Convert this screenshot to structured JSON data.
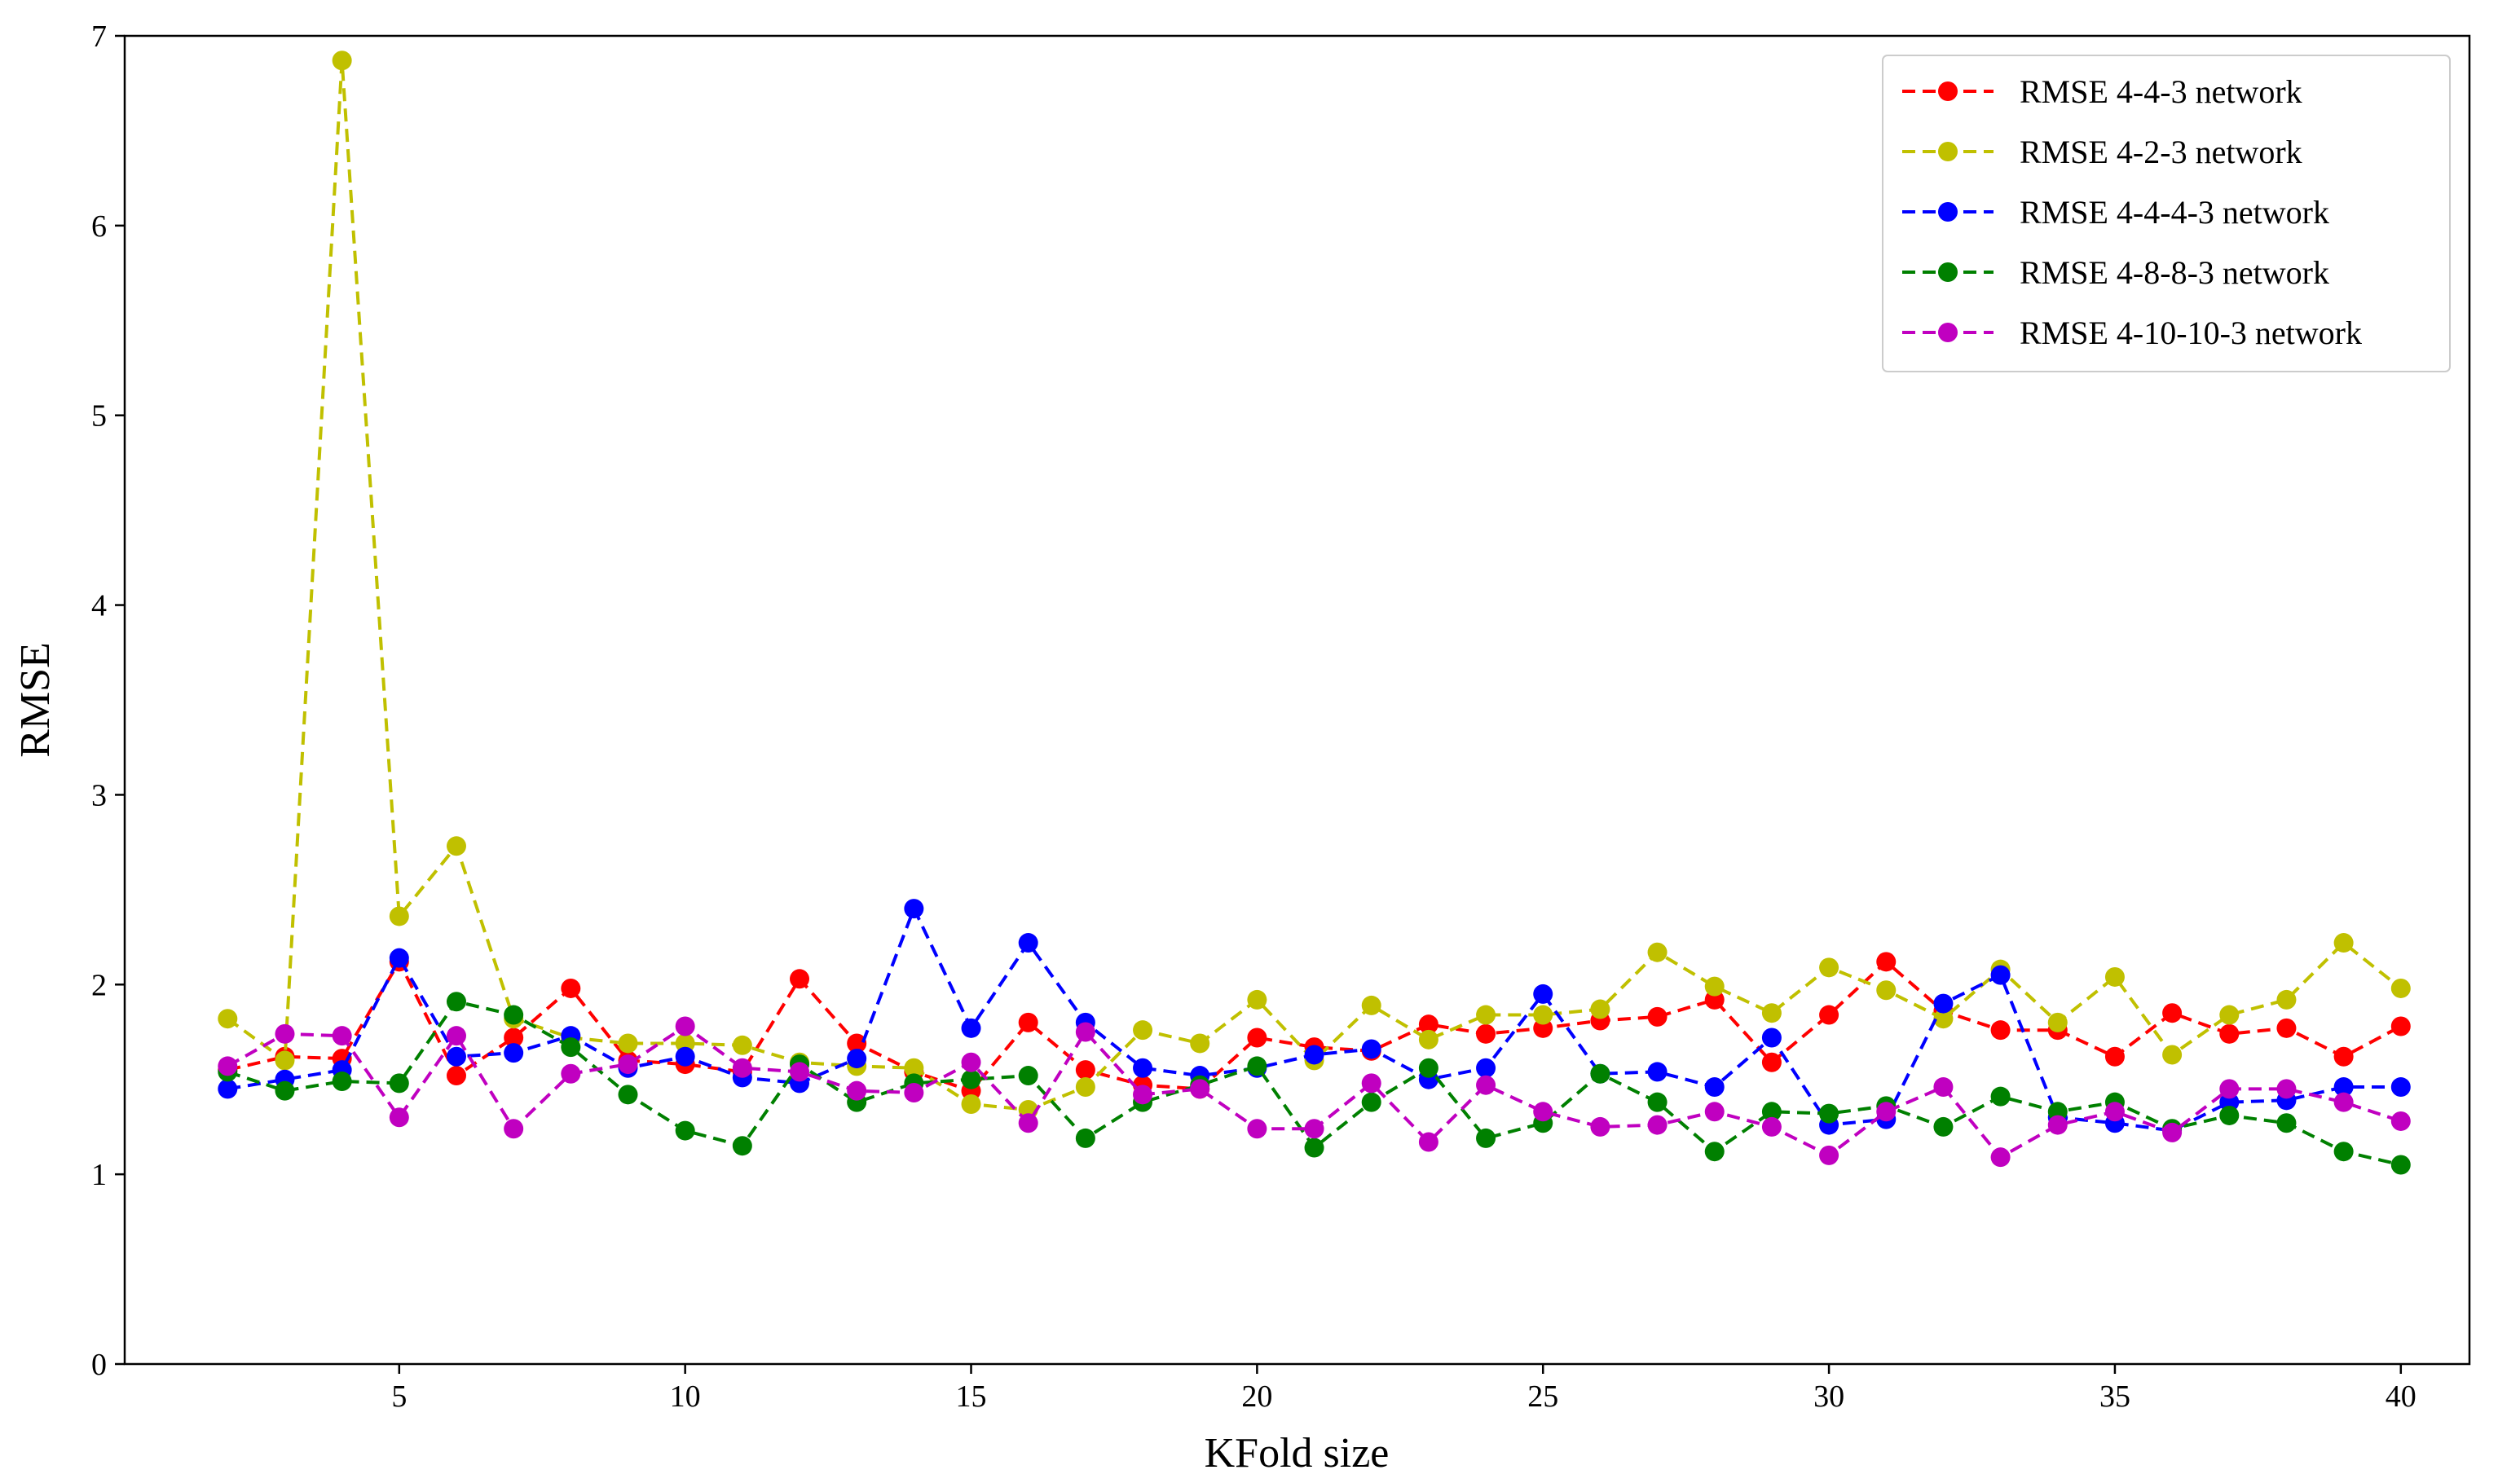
{
  "chart_data": {
    "type": "line",
    "title": "",
    "xlabel": "KFold size",
    "ylabel": "RMSE",
    "xlim": [
      0.2,
      41.2
    ],
    "ylim": [
      0,
      7
    ],
    "xticks": [
      5,
      10,
      15,
      20,
      25,
      30,
      35,
      40
    ],
    "yticks": [
      0,
      1,
      2,
      3,
      4,
      5,
      6,
      7
    ],
    "grid": false,
    "legend_position": "top-right",
    "line_style": "dashed",
    "marker": "circle",
    "x": [
      2,
      3,
      4,
      5,
      6,
      7,
      8,
      9,
      10,
      11,
      12,
      13,
      14,
      15,
      16,
      17,
      18,
      19,
      20,
      21,
      22,
      23,
      24,
      25,
      26,
      27,
      28,
      29,
      30,
      31,
      32,
      33,
      34,
      35,
      36,
      37,
      38,
      39,
      40
    ],
    "series": [
      {
        "name": "RMSE 4-4-3 network",
        "color": "#ff0000",
        "values": [
          1.55,
          1.62,
          1.61,
          2.12,
          1.52,
          1.72,
          1.98,
          1.6,
          1.58,
          1.54,
          2.03,
          1.69,
          1.54,
          1.44,
          1.8,
          1.55,
          1.47,
          1.45,
          1.72,
          1.67,
          1.65,
          1.79,
          1.74,
          1.77,
          1.81,
          1.83,
          1.92,
          1.59,
          1.84,
          2.12,
          1.86,
          1.76,
          1.76,
          1.62,
          1.85,
          1.74,
          1.77,
          1.62,
          1.78
        ]
      },
      {
        "name": "RMSE 4-2-3 network",
        "color": "#c0c000",
        "values": [
          1.82,
          1.6,
          6.87,
          2.36,
          2.73,
          1.82,
          1.72,
          1.69,
          1.69,
          1.68,
          1.59,
          1.57,
          1.56,
          1.37,
          1.34,
          1.46,
          1.76,
          1.69,
          1.92,
          1.6,
          1.89,
          1.71,
          1.84,
          1.84,
          1.87,
          2.17,
          1.99,
          1.85,
          2.09,
          1.97,
          1.82,
          2.08,
          1.8,
          2.04,
          1.63,
          1.84,
          1.92,
          2.22,
          1.98
        ]
      },
      {
        "name": "RMSE 4-4-4-3 network",
        "color": "#0000ff",
        "values": [
          1.45,
          1.5,
          1.55,
          2.14,
          1.62,
          1.64,
          1.73,
          1.56,
          1.62,
          1.51,
          1.48,
          1.61,
          2.4,
          1.77,
          2.22,
          1.8,
          1.56,
          1.52,
          1.56,
          1.63,
          1.66,
          1.5,
          1.56,
          1.95,
          1.53,
          1.54,
          1.46,
          1.72,
          1.26,
          1.29,
          1.9,
          2.05,
          1.3,
          1.27,
          1.23,
          1.38,
          1.39,
          1.46,
          1.46
        ]
      },
      {
        "name": "RMSE 4-8-8-3 network",
        "color": "#008000",
        "values": [
          1.54,
          1.44,
          1.49,
          1.48,
          1.91,
          1.84,
          1.67,
          1.42,
          1.23,
          1.15,
          1.58,
          1.38,
          1.48,
          1.5,
          1.52,
          1.19,
          1.38,
          1.47,
          1.57,
          1.14,
          1.38,
          1.56,
          1.19,
          1.27,
          1.53,
          1.38,
          1.12,
          1.33,
          1.32,
          1.36,
          1.25,
          1.41,
          1.33,
          1.38,
          1.24,
          1.31,
          1.27,
          1.12,
          1.05
        ]
      },
      {
        "name": "RMSE 4-10-10-3 network",
        "color": "#c000c0",
        "values": [
          1.57,
          1.74,
          1.73,
          1.3,
          1.73,
          1.24,
          1.53,
          1.58,
          1.78,
          1.56,
          1.54,
          1.44,
          1.43,
          1.59,
          1.27,
          1.75,
          1.42,
          1.45,
          1.24,
          1.24,
          1.48,
          1.17,
          1.47,
          1.33,
          1.25,
          1.26,
          1.33,
          1.25,
          1.1,
          1.33,
          1.46,
          1.09,
          1.26,
          1.33,
          1.22,
          1.45,
          1.45,
          1.38,
          1.28
        ]
      }
    ]
  }
}
